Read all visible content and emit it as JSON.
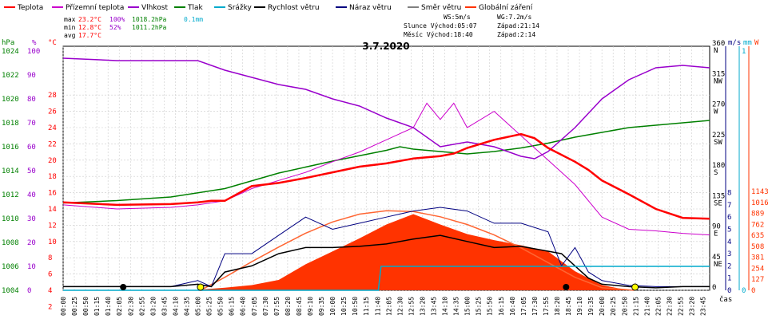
{
  "chart_data": {
    "type": "line",
    "title": "3.7.2020",
    "legend": [
      {
        "name": "Teplota",
        "color": "#ff0000"
      },
      {
        "name": "Přízemní teplota",
        "color": "#cc00cc"
      },
      {
        "name": "Vlhkost",
        "color": "#9900cc"
      },
      {
        "name": "Tlak",
        "color": "#008000"
      },
      {
        "name": "Srážky",
        "color": "#00aacc"
      },
      {
        "name": "Rychlost větru",
        "color": "#000000"
      },
      {
        "name": "Náraz větru",
        "color": "#000080"
      },
      {
        "name": "Směr větru",
        "color": "#808080"
      },
      {
        "name": "Globální záření",
        "color": "#ff3300"
      }
    ],
    "stats": {
      "max": {
        "label": "max",
        "temp": "23.2°C",
        "hum": "100%",
        "press": "1018.2hPa",
        "rain": "0.1mm"
      },
      "min": {
        "label": "min",
        "temp": "12.8°C",
        "hum": "52%",
        "press": "1011.2hPa"
      },
      "avg": {
        "label": "avg",
        "temp": "17.7°C"
      }
    },
    "info": {
      "ws": "WS:5m/s",
      "wg": "WG:7.2m/s",
      "sun": "Slunce Východ:05:07",
      "sun_set": "Západ:21:14",
      "moon": "Měsíc  Východ:18:40",
      "moon_set": "Západ:2:14"
    },
    "axes": {
      "hpa_label": "hPa",
      "pct_label": "%",
      "c_label": "°C",
      "ms_label": "m/s",
      "mm_label": "mm",
      "w_label": "W",
      "x_label": "čas",
      "hpa_ticks": [
        "1024",
        "1022",
        "1020",
        "1018",
        "1016",
        "1014",
        "1012",
        "1010",
        "1008",
        "1006",
        "1004"
      ],
      "pct_ticks": [
        "100",
        "90",
        "80",
        "70",
        "60",
        "50",
        "40",
        "30",
        "20",
        "10",
        "0"
      ],
      "c_ticks": [
        "28",
        "26",
        "24",
        "22",
        "20",
        "18",
        "16",
        "14",
        "12",
        "10",
        "8",
        "6",
        "4",
        "2"
      ],
      "deg_ticks": [
        {
          "deg": "360",
          "dir": "N"
        },
        {
          "deg": "315",
          "dir": "NW"
        },
        {
          "deg": "270",
          "dir": "W"
        },
        {
          "deg": "225",
          "dir": "SW"
        },
        {
          "deg": "180",
          "dir": "S"
        },
        {
          "deg": "135",
          "dir": "SE"
        },
        {
          "deg": "90",
          "dir": "E"
        },
        {
          "deg": "45",
          "dir": "NE"
        },
        {
          "deg": "0",
          "dir": ""
        }
      ],
      "ms_ticks": [
        "8",
        "7",
        "6",
        "5",
        "4",
        "3",
        "2",
        "1",
        "0"
      ],
      "mm_ticks": [
        "1",
        "0"
      ],
      "w_ticks": [
        "1143",
        "1016",
        "889",
        "762",
        "635",
        "508",
        "381",
        "254",
        "127",
        "0"
      ],
      "x_ticks": [
        "00:00",
        "00:25",
        "00:50",
        "01:15",
        "01:40",
        "02:05",
        "02:30",
        "02:55",
        "03:20",
        "03:45",
        "04:10",
        "04:35",
        "05:00",
        "05:25",
        "05:50",
        "06:15",
        "06:40",
        "07:05",
        "07:30",
        "07:55",
        "08:20",
        "08:45",
        "09:10",
        "09:35",
        "10:00",
        "10:25",
        "10:50",
        "11:15",
        "11:40",
        "12:05",
        "12:30",
        "12:55",
        "13:20",
        "13:45",
        "14:10",
        "14:35",
        "15:00",
        "15:25",
        "15:50",
        "16:15",
        "16:40",
        "17:05",
        "17:30",
        "17:55",
        "18:20",
        "18:45",
        "19:10",
        "19:35",
        "20:00",
        "20:25",
        "20:50",
        "21:15",
        "21:40",
        "22:05",
        "22:30",
        "22:55",
        "23:20",
        "23:45"
      ]
    },
    "temperature": {
      "x": [
        0,
        2,
        4,
        5,
        5.5,
        6,
        7,
        8,
        9,
        10,
        11,
        12,
        13,
        14,
        14.5,
        15,
        16,
        17,
        17.5,
        18,
        19,
        19.5,
        20,
        21,
        22,
        23,
        24
      ],
      "y": [
        14.8,
        14.5,
        14.6,
        14.8,
        15,
        15,
        16.8,
        17.2,
        17.8,
        18.5,
        19.2,
        19.6,
        20.2,
        20.5,
        20.8,
        21.5,
        22.5,
        23.2,
        22.7,
        21.5,
        19.8,
        18.8,
        17.5,
        15.8,
        14,
        12.9,
        12.8
      ]
    },
    "ground_temp": {
      "x": [
        0,
        2,
        4,
        5,
        6,
        7,
        8,
        9,
        10,
        11,
        12,
        13,
        13.5,
        14,
        14.5,
        15,
        16,
        17,
        18,
        19,
        20,
        21,
        22,
        23,
        24
      ],
      "y": [
        14.5,
        14,
        14.2,
        14.5,
        15,
        16.5,
        17.5,
        18.5,
        19.8,
        21,
        22.5,
        24,
        27,
        25,
        27,
        24,
        26,
        23,
        20,
        17,
        13,
        11.5,
        11.3,
        11,
        10.8
      ]
    },
    "humidity": {
      "x": [
        0,
        2,
        4,
        5,
        6,
        7,
        8,
        9,
        10,
        11,
        12,
        13,
        14,
        15,
        16,
        17,
        17.5,
        18,
        19,
        20,
        21,
        22,
        23,
        24
      ],
      "y": [
        97,
        96,
        96,
        96,
        92,
        89,
        86,
        84,
        80,
        77,
        72,
        68,
        60,
        62,
        60,
        56,
        55,
        58,
        68,
        80,
        88,
        93,
        94,
        93
      ]
    },
    "pressure": {
      "x": [
        0,
        2,
        4,
        6,
        8,
        10,
        12,
        12.5,
        13,
        14,
        15,
        16,
        17,
        18,
        19,
        20,
        21,
        22,
        23,
        24
      ],
      "y": [
        1011.3,
        1011.5,
        1011.8,
        1012.5,
        1013.8,
        1014.8,
        1015.7,
        1016,
        1015.8,
        1015.6,
        1015.4,
        1015.6,
        1015.9,
        1016.3,
        1016.8,
        1017.2,
        1017.6,
        1017.8,
        1018,
        1018.2
      ]
    },
    "wind_speed": {
      "x": [
        0,
        4,
        5,
        5.5,
        6,
        7,
        8,
        9,
        10,
        11,
        12,
        13,
        14,
        15,
        16,
        17,
        18,
        18.5,
        19,
        19.5,
        20,
        21,
        22,
        23,
        24
      ],
      "y": [
        0.3,
        0.3,
        0.5,
        0.3,
        1.5,
        2,
        3,
        3.5,
        3.5,
        3.6,
        3.8,
        4.2,
        4.5,
        4,
        3.5,
        3.6,
        3.2,
        3,
        2,
        1,
        0.5,
        0.3,
        0.2,
        0.3,
        0.3
      ]
    },
    "wind_gust": {
      "x": [
        0,
        4,
        5,
        5.5,
        6,
        7,
        8,
        9,
        10,
        11,
        12,
        13,
        14,
        15,
        16,
        17,
        18,
        18.5,
        19,
        19.5,
        20,
        21,
        22,
        23,
        24
      ],
      "y": [
        0.3,
        0.3,
        0.8,
        0.3,
        3,
        3,
        4.5,
        6,
        5,
        5.5,
        6,
        6.5,
        6.8,
        6.5,
        5.5,
        5.5,
        4.8,
        2,
        3.5,
        1.5,
        0.8,
        0.4,
        0.3,
        0.3,
        0.3
      ]
    },
    "global_radiation": {
      "x": [
        4.8,
        6,
        7,
        8,
        9,
        10,
        11,
        12,
        13,
        13.5,
        14,
        15,
        16,
        17,
        18,
        19,
        20,
        21
      ],
      "y": [
        0,
        30,
        60,
        120,
        300,
        450,
        600,
        760,
        880,
        820,
        760,
        650,
        580,
        520,
        450,
        220,
        60,
        0
      ]
    },
    "clear_sky_radiation": {
      "x": [
        5.1,
        6,
        7,
        8,
        9,
        10,
        11,
        12,
        13,
        14,
        15,
        16,
        17,
        18,
        19,
        20,
        21.2
      ],
      "y": [
        0,
        150,
        330,
        500,
        660,
        790,
        880,
        920,
        910,
        850,
        760,
        640,
        490,
        320,
        150,
        30,
        0
      ]
    },
    "rain_accumulated": {
      "x": [
        0,
        11.7,
        11.8,
        24
      ],
      "y": [
        0,
        0,
        0.1,
        0.1
      ]
    }
  }
}
